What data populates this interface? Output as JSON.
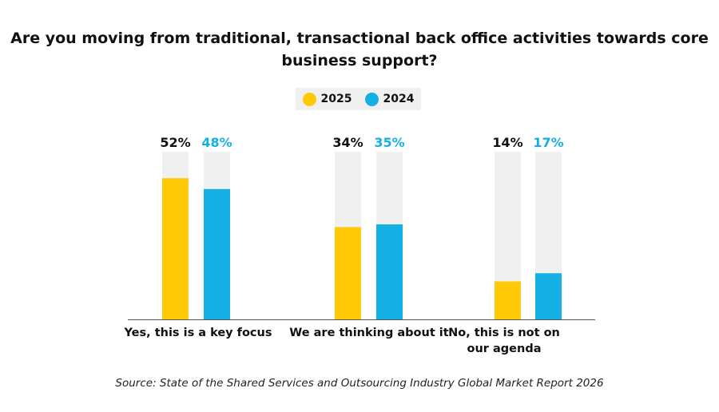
{
  "chart_data": {
    "type": "bar",
    "title": "Are you moving from traditional, transactional back office activities towards core business support?",
    "categories": [
      "Yes, this is a key focus",
      "We are thinking about it",
      "No, this is not on our agenda"
    ],
    "series": [
      {
        "name": "2025",
        "values": [
          52,
          34,
          14
        ],
        "color": "#FFC907",
        "label_color": "#111111"
      },
      {
        "name": "2024",
        "values": [
          48,
          35,
          17
        ],
        "color": "#15B0E3",
        "label_color": "#15B0E3"
      }
    ],
    "value_suffix": "%",
    "track_color": "#F0F0F0",
    "grid": false,
    "legend": "top-center",
    "source": "Source: State of the Shared Services and Outsourcing Industry Global Market Report 2026"
  }
}
